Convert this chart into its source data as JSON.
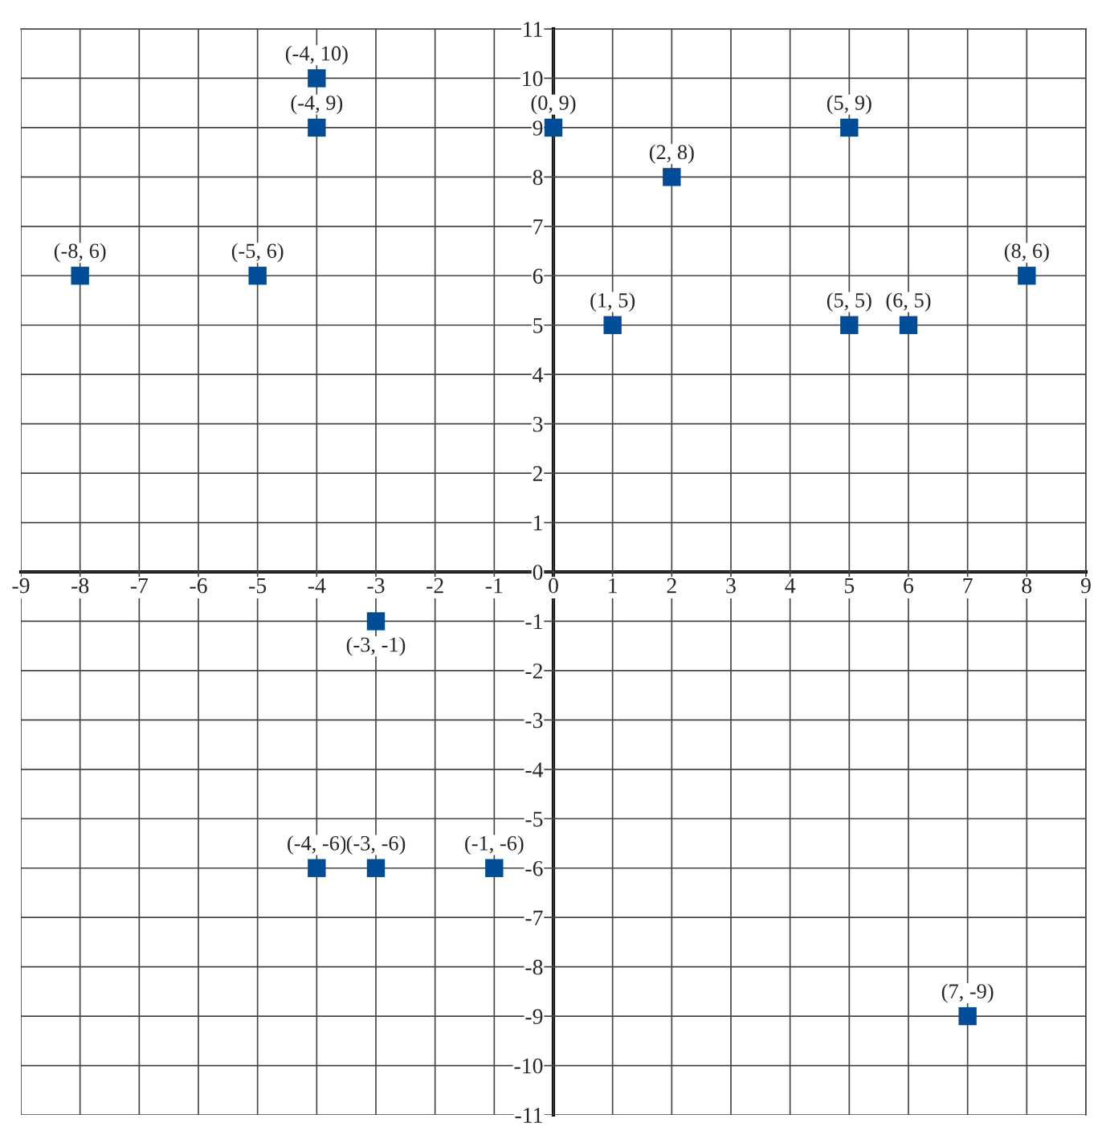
{
  "chart_data": {
    "type": "scatter",
    "x": [
      -4,
      -4,
      0,
      5,
      2,
      -8,
      -5,
      8,
      1,
      5,
      6,
      -3,
      -4,
      -3,
      -1,
      7
    ],
    "values": [
      10,
      9,
      9,
      9,
      8,
      6,
      6,
      6,
      5,
      5,
      5,
      -1,
      -6,
      -6,
      -6,
      -9
    ],
    "value_labels": [
      "(-4, 10)",
      "(-4, 9)",
      "(0, 9)",
      "(5, 9)",
      "(2, 8)",
      "(-8, 6)",
      "(-5, 6)",
      "(8, 6)",
      "(1, 5)",
      "(5, 5)",
      "(6, 5)",
      "(-3, -1)",
      "(-4, -6)",
      "(-3, -6)",
      "(-1, -6)",
      "(7, -9)"
    ],
    "color": "#004c97",
    "marker": "square",
    "xlim": [
      -9,
      9
    ],
    "ylim": [
      -11,
      11
    ],
    "xticks": [
      -9,
      -8,
      -7,
      -6,
      -5,
      -4,
      -3,
      -2,
      -1,
      0,
      1,
      2,
      3,
      4,
      5,
      6,
      7,
      8,
      9
    ],
    "yticks": [
      -11,
      -10,
      -9,
      -8,
      -7,
      -6,
      -5,
      -4,
      -3,
      -2,
      -1,
      0,
      1,
      2,
      3,
      4,
      5,
      6,
      7,
      8,
      9,
      10,
      11
    ],
    "grid": true
  }
}
